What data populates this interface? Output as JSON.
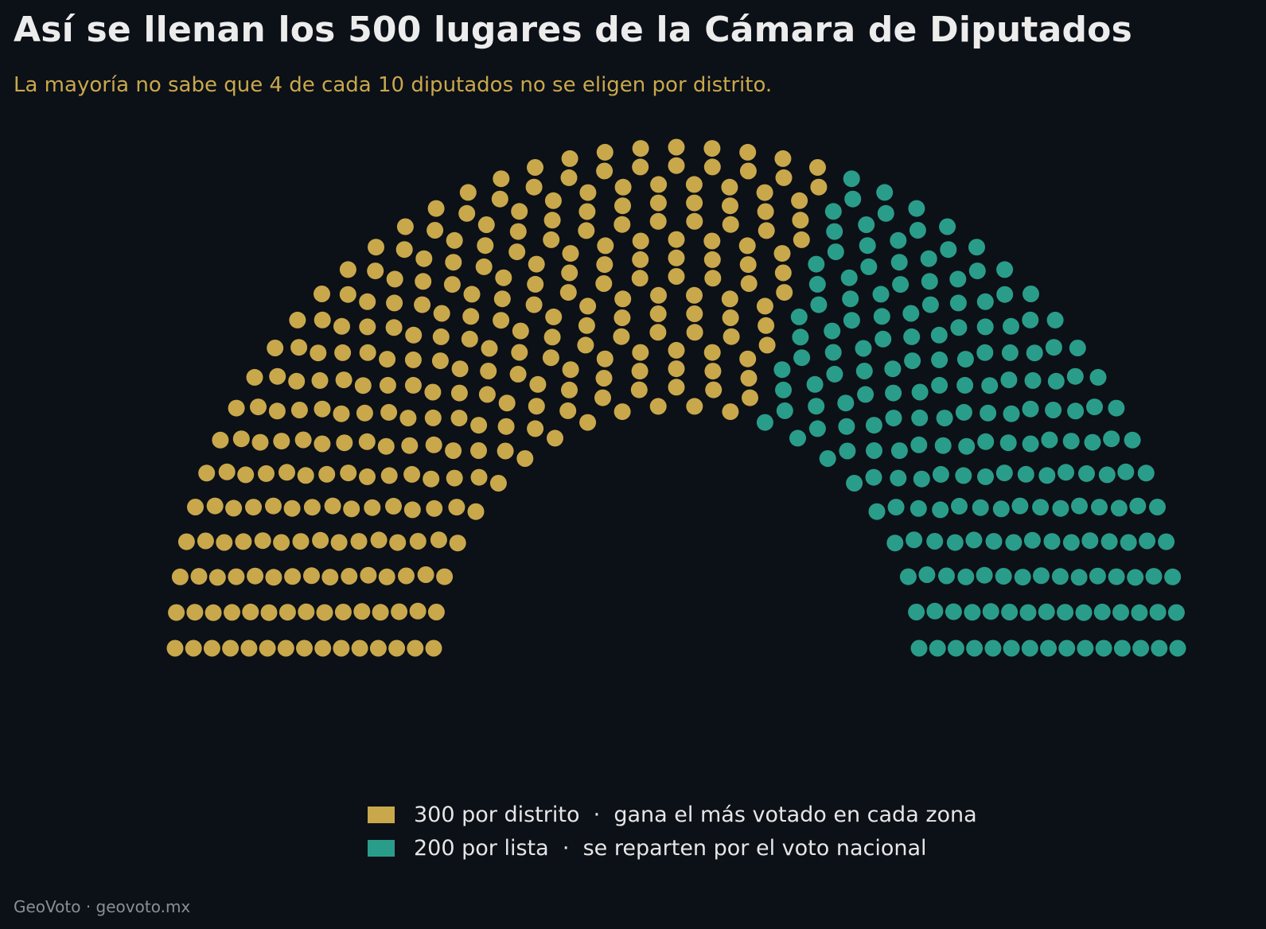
{
  "title": "Así se llenan los 500 lugares de la Cámara de Diputados",
  "subtitle": "La mayoría no sabe que 4 de cada 10 diputados no se eligen por distrito.",
  "footer": "GeoVoto · geovoto.mx",
  "chart_data": {
    "type": "parliament",
    "total_seats": 500,
    "series": [
      {
        "key": "distrito",
        "values": [
          300
        ],
        "color": "#c9a84c",
        "legend": "300 por distrito  ·  gana el más votado en cada zona"
      },
      {
        "key": "lista",
        "values": [
          200
        ],
        "color": "#2a9d8a",
        "legend": "200 por lista  ·  se reparten por el voto nacional"
      }
    ],
    "legend_placement": "bottom-center"
  }
}
